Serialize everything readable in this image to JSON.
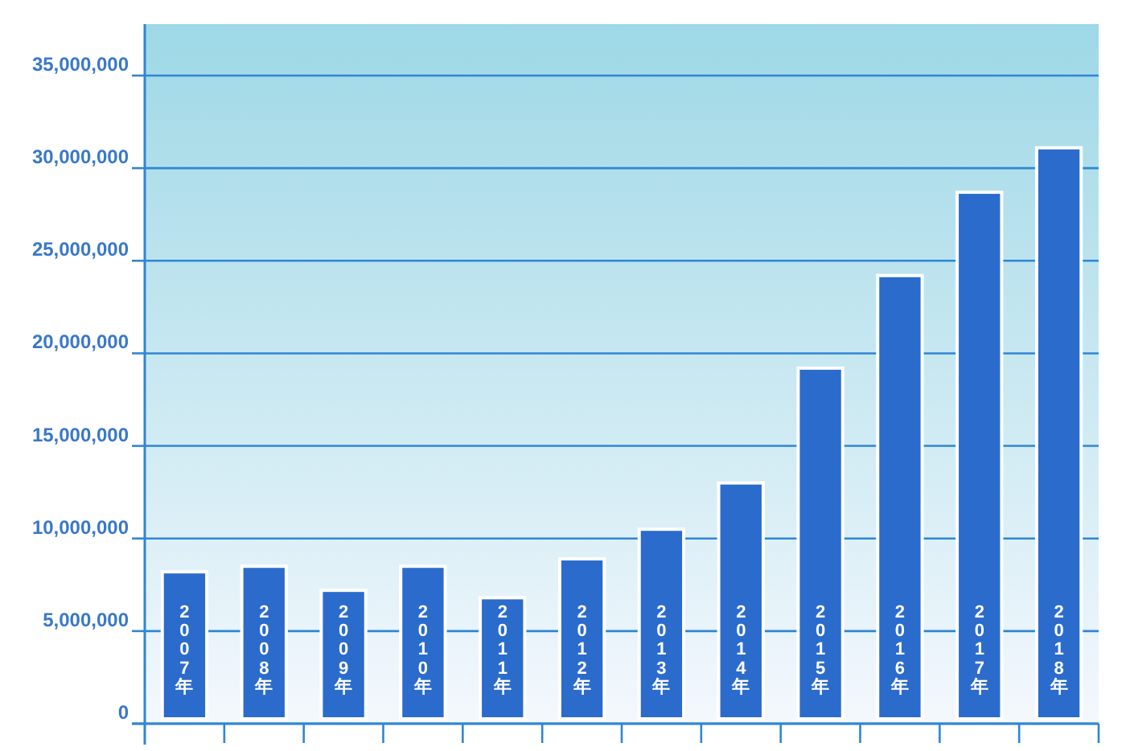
{
  "chart_data": {
    "type": "bar",
    "categories": [
      "2007年",
      "2008年",
      "2009年",
      "2010年",
      "2011年",
      "2012年",
      "2013年",
      "2014年",
      "2015年",
      "2016年",
      "2017年",
      "2018年"
    ],
    "values": [
      8200000,
      8500000,
      7200000,
      8500000,
      6800000,
      8900000,
      10500000,
      13000000,
      19200000,
      24200000,
      28700000,
      31100000
    ],
    "color": "#2b6bcc",
    "ylim": [
      0,
      35000000
    ],
    "yticks": [
      {
        "value": 0,
        "label": "0"
      },
      {
        "value": 5000000,
        "label": "5,000,000"
      },
      {
        "value": 10000000,
        "label": "10,000,000"
      },
      {
        "value": 15000000,
        "label": "15,000,000"
      },
      {
        "value": 20000000,
        "label": "20,000,000"
      },
      {
        "value": 25000000,
        "label": "25,000,000"
      },
      {
        "value": 30000000,
        "label": "30,000,000"
      },
      {
        "value": 35000000,
        "label": "35,000,000"
      }
    ],
    "grid": "y"
  }
}
